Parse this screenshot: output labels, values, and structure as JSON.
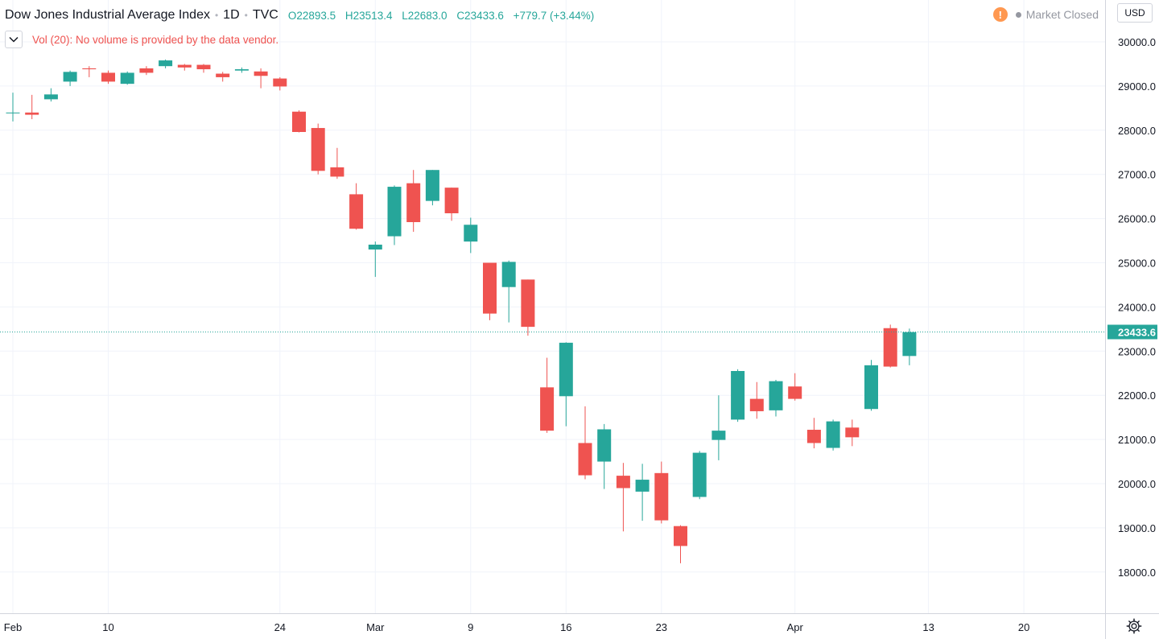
{
  "header": {
    "symbol_title": "Dow Jones Industrial Average Index",
    "interval": "1D",
    "exchange": "TVC",
    "open": "O22893.5",
    "high": "H23513.4",
    "low": "L22683.0",
    "close": "C23433.6",
    "change": "+779.7 (+3.44%)"
  },
  "volume_notice": "Vol (20): No volume is provided by the data vendor.",
  "market_status": "Market Closed",
  "currency": "USD",
  "last_price_label": "23433.6",
  "colors": {
    "up": "#26a69a",
    "down": "#ef5350",
    "warning": "#ff9850",
    "grid": "#f0f3fa"
  },
  "icons": {
    "collapse": "chevron-down-icon",
    "warning": "warning-icon",
    "settings": "gear-icon"
  },
  "chart_data": {
    "type": "candlestick",
    "y_ticks": [
      "30000.0",
      "29000.0",
      "28000.0",
      "27000.0",
      "26000.0",
      "25000.0",
      "24000.0",
      "23000.0",
      "22000.0",
      "21000.0",
      "20000.0",
      "19000.0",
      "18000.0"
    ],
    "y_tick_values": [
      30000,
      29000,
      28000,
      27000,
      26000,
      25000,
      24000,
      23000,
      22000,
      21000,
      20000,
      19000,
      18000
    ],
    "x_ticks": [
      {
        "label": "Feb",
        "index": 0
      },
      {
        "label": "10",
        "index": 5
      },
      {
        "label": "24",
        "index": 14
      },
      {
        "label": "Mar",
        "index": 19
      },
      {
        "label": "9",
        "index": 24
      },
      {
        "label": "16",
        "index": 29
      },
      {
        "label": "23",
        "index": 34
      },
      {
        "label": "Apr",
        "index": 41
      },
      {
        "label": "13",
        "index": 48
      },
      {
        "label": "20",
        "index": 53
      }
    ],
    "last_price": 23433.6,
    "candles": [
      {
        "o": 28399,
        "h": 28850,
        "l": 28200,
        "c": 28400
      },
      {
        "o": 28400,
        "h": 28800,
        "l": 28250,
        "c": 28350
      },
      {
        "o": 28700,
        "h": 28950,
        "l": 28650,
        "c": 28810
      },
      {
        "o": 29100,
        "h": 29350,
        "l": 29000,
        "c": 29320
      },
      {
        "o": 29400,
        "h": 29450,
        "l": 29200,
        "c": 29380
      },
      {
        "o": 29300,
        "h": 29350,
        "l": 29050,
        "c": 29100
      },
      {
        "o": 29050,
        "h": 29330,
        "l": 29030,
        "c": 29300
      },
      {
        "o": 29400,
        "h": 29450,
        "l": 29250,
        "c": 29300
      },
      {
        "o": 29450,
        "h": 29600,
        "l": 29400,
        "c": 29580
      },
      {
        "o": 29480,
        "h": 29500,
        "l": 29350,
        "c": 29420
      },
      {
        "o": 29480,
        "h": 29500,
        "l": 29300,
        "c": 29380
      },
      {
        "o": 29280,
        "h": 29320,
        "l": 29100,
        "c": 29200
      },
      {
        "o": 29350,
        "h": 29420,
        "l": 29300,
        "c": 29380
      },
      {
        "o": 29330,
        "h": 29400,
        "l": 28950,
        "c": 29230
      },
      {
        "o": 29170,
        "h": 29200,
        "l": 28900,
        "c": 28990
      },
      {
        "o": 28420,
        "h": 28450,
        "l": 27950,
        "c": 27960
      },
      {
        "o": 28050,
        "h": 28150,
        "l": 27000,
        "c": 27080
      },
      {
        "o": 27160,
        "h": 27600,
        "l": 26900,
        "c": 26950
      },
      {
        "o": 26550,
        "h": 26800,
        "l": 25750,
        "c": 25770
      },
      {
        "o": 25300,
        "h": 25480,
        "l": 24680,
        "c": 25410
      },
      {
        "o": 25600,
        "h": 26750,
        "l": 25400,
        "c": 26720
      },
      {
        "o": 26800,
        "h": 27100,
        "l": 25700,
        "c": 25920
      },
      {
        "o": 26400,
        "h": 27100,
        "l": 26300,
        "c": 27100
      },
      {
        "o": 26700,
        "h": 26700,
        "l": 25950,
        "c": 26120
      },
      {
        "o": 25480,
        "h": 26020,
        "l": 25220,
        "c": 25860
      },
      {
        "o": 25000,
        "h": 25000,
        "l": 23700,
        "c": 23850
      },
      {
        "o": 24450,
        "h": 25050,
        "l": 23650,
        "c": 25020
      },
      {
        "o": 24620,
        "h": 24620,
        "l": 23350,
        "c": 23550
      },
      {
        "o": 22180,
        "h": 22850,
        "l": 21150,
        "c": 21200
      },
      {
        "o": 21980,
        "h": 23200,
        "l": 21300,
        "c": 23190
      },
      {
        "o": 20920,
        "h": 21750,
        "l": 20100,
        "c": 20190
      },
      {
        "o": 20500,
        "h": 21350,
        "l": 19880,
        "c": 21230
      },
      {
        "o": 20180,
        "h": 20470,
        "l": 18920,
        "c": 19900
      },
      {
        "o": 19820,
        "h": 20450,
        "l": 19160,
        "c": 20090
      },
      {
        "o": 20240,
        "h": 20500,
        "l": 19100,
        "c": 19170
      },
      {
        "o": 19040,
        "h": 19060,
        "l": 18200,
        "c": 18590
      },
      {
        "o": 19700,
        "h": 20740,
        "l": 19650,
        "c": 20700
      },
      {
        "o": 20990,
        "h": 22000,
        "l": 20530,
        "c": 21200
      },
      {
        "o": 21450,
        "h": 22590,
        "l": 21400,
        "c": 22550
      },
      {
        "o": 21920,
        "h": 22300,
        "l": 21470,
        "c": 21640
      },
      {
        "o": 21660,
        "h": 22350,
        "l": 21520,
        "c": 22320
      },
      {
        "o": 22200,
        "h": 22500,
        "l": 21880,
        "c": 21920
      },
      {
        "o": 21220,
        "h": 21490,
        "l": 20800,
        "c": 20920
      },
      {
        "o": 20810,
        "h": 21450,
        "l": 20750,
        "c": 21410
      },
      {
        "o": 21270,
        "h": 21450,
        "l": 20850,
        "c": 21050
      },
      {
        "o": 21690,
        "h": 22800,
        "l": 21650,
        "c": 22680
      },
      {
        "o": 23520,
        "h": 23600,
        "l": 22630,
        "c": 22650
      },
      {
        "o": 22890,
        "h": 23510,
        "l": 22680,
        "c": 23430
      }
    ]
  }
}
